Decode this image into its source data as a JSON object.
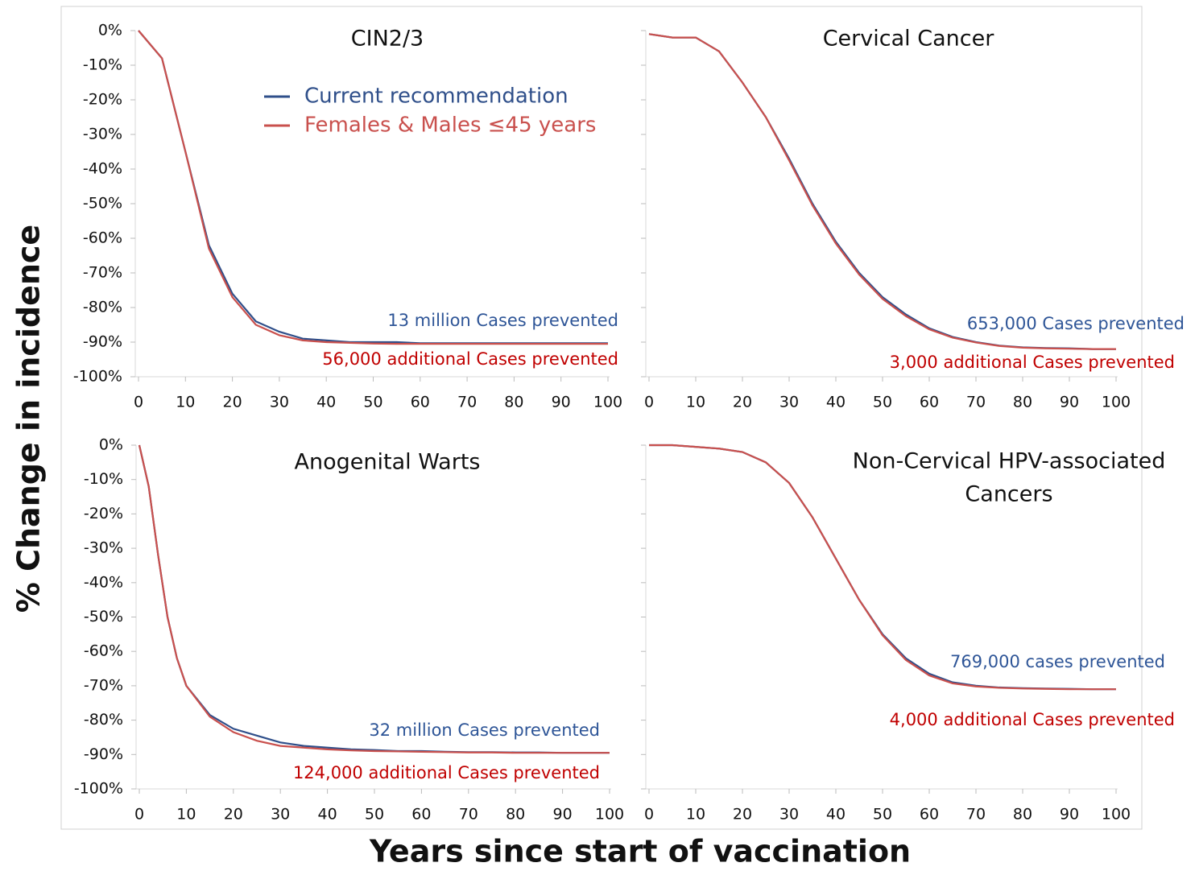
{
  "figure": {
    "xlabel": "Years since start of vaccination",
    "ylabel": "% Change in incidence"
  },
  "chart_data": [
    {
      "type": "line",
      "title": "CIN2/3",
      "legend": true,
      "x": [
        0,
        5,
        10,
        15,
        20,
        25,
        30,
        35,
        40,
        45,
        50,
        55,
        60,
        65,
        70,
        75,
        80,
        85,
        90,
        95,
        100
      ],
      "series": [
        {
          "name": "Current recommendation",
          "color": "#2f4f8a",
          "values": [
            0,
            -8,
            -35,
            -62,
            -76,
            -84,
            -87,
            -89,
            -89.5,
            -90,
            -90,
            -90,
            -90.3,
            -90.3,
            -90.3,
            -90.3,
            -90.3,
            -90.3,
            -90.3,
            -90.3,
            -90.3
          ]
        },
        {
          "name": "Females & Males ≤45 years",
          "color": "#c9504d",
          "values": [
            0,
            -8,
            -35,
            -63,
            -77,
            -85,
            -88,
            -89.5,
            -90,
            -90.2,
            -90.4,
            -90.5,
            -90.5,
            -90.5,
            -90.5,
            -90.5,
            -90.5,
            -90.5,
            -90.5,
            -90.5,
            -90.5
          ]
        }
      ],
      "annotations": [
        {
          "text": "13 million Cases prevented",
          "color": "#2e5597"
        },
        {
          "text": "56,000 additional Cases prevented",
          "color": "#c00000"
        }
      ],
      "xlim": [
        0,
        100
      ],
      "xticks": [
        0,
        10,
        20,
        30,
        40,
        50,
        60,
        70,
        80,
        90,
        100
      ],
      "ylim": [
        -100,
        0
      ],
      "show_ytick_labels": true,
      "yticks": [
        {
          "value": -100,
          "label": "-100%"
        },
        {
          "value": -90,
          "label": "-90%"
        },
        {
          "value": -80,
          "label": "-80%"
        },
        {
          "value": -70,
          "label": "-70%"
        },
        {
          "value": -60,
          "label": "-60%"
        },
        {
          "value": -50,
          "label": "-50%"
        },
        {
          "value": -40,
          "label": "-40%"
        },
        {
          "value": -30,
          "label": "-30%"
        },
        {
          "value": -20,
          "label": "-20%"
        },
        {
          "value": -10,
          "label": "-10%"
        },
        {
          "value": 0,
          "label": "0%"
        }
      ]
    },
    {
      "type": "line",
      "title": "Cervical Cancer",
      "legend": false,
      "x": [
        0,
        5,
        10,
        15,
        20,
        25,
        30,
        35,
        40,
        45,
        50,
        55,
        60,
        65,
        70,
        75,
        80,
        85,
        90,
        95,
        100
      ],
      "series": [
        {
          "color": "#2f4f8a",
          "values": [
            -1,
            -2,
            -2,
            -6,
            -15,
            -25,
            -37,
            -50,
            -61,
            -70,
            -77,
            -82,
            -86,
            -88.5,
            -90,
            -91,
            -91.5,
            -91.7,
            -91.8,
            -92,
            -92
          ]
        },
        {
          "color": "#c9504d",
          "values": [
            -1,
            -2,
            -2,
            -6,
            -15,
            -25,
            -37.5,
            -50.5,
            -61.5,
            -70.5,
            -77.5,
            -82.5,
            -86.3,
            -88.7,
            -90.1,
            -91.1,
            -91.6,
            -91.8,
            -91.9,
            -92,
            -92
          ]
        }
      ],
      "annotations": [
        {
          "text": "653,000 Cases prevented",
          "color": "#2e5597"
        },
        {
          "text": "3,000 additional Cases prevented",
          "color": "#c00000"
        }
      ],
      "xlim": [
        0,
        100
      ],
      "xticks": [
        0,
        10,
        20,
        30,
        40,
        50,
        60,
        70,
        80,
        90,
        100
      ],
      "ylim": [
        -100,
        0
      ],
      "show_ytick_labels": false,
      "yticks": [
        -100,
        -90,
        -80,
        -70,
        -60,
        -50,
        -40,
        -30,
        -20,
        -10,
        0
      ]
    },
    {
      "type": "line",
      "title": "Anogenital Warts",
      "legend": false,
      "x": [
        0,
        2,
        4,
        6,
        8,
        10,
        15,
        20,
        25,
        30,
        35,
        40,
        45,
        50,
        55,
        60,
        65,
        70,
        75,
        80,
        85,
        90,
        95,
        100
      ],
      "series": [
        {
          "color": "#2f4f8a",
          "values": [
            0,
            -12,
            -32,
            -50,
            -62,
            -70,
            -78.5,
            -82.5,
            -84.5,
            -86.5,
            -87.5,
            -88,
            -88.5,
            -88.7,
            -89,
            -89,
            -89.2,
            -89.3,
            -89.3,
            -89.4,
            -89.4,
            -89.5,
            -89.5,
            -89.5
          ]
        },
        {
          "color": "#c9504d",
          "values": [
            0,
            -12,
            -32,
            -50,
            -62,
            -70,
            -79,
            -83.5,
            -86,
            -87.5,
            -88,
            -88.5,
            -88.8,
            -89,
            -89.1,
            -89.2,
            -89.3,
            -89.4,
            -89.4,
            -89.5,
            -89.5,
            -89.5,
            -89.5,
            -89.5
          ]
        }
      ],
      "annotations": [
        {
          "text": "32 million Cases prevented",
          "color": "#2e5597"
        },
        {
          "text": "124,000 additional Cases prevented",
          "color": "#c00000"
        }
      ],
      "xlim": [
        0,
        100
      ],
      "xticks": [
        0,
        10,
        20,
        30,
        40,
        50,
        60,
        70,
        80,
        90,
        100
      ],
      "ylim": [
        -100,
        0
      ],
      "show_ytick_labels": true,
      "yticks": [
        {
          "value": -100,
          "label": "-100%"
        },
        {
          "value": -90,
          "label": "-90%"
        },
        {
          "value": -80,
          "label": "-80%"
        },
        {
          "value": -70,
          "label": "-70%"
        },
        {
          "value": -60,
          "label": "-60%"
        },
        {
          "value": -50,
          "label": "-50%"
        },
        {
          "value": -40,
          "label": "-40%"
        },
        {
          "value": -30,
          "label": "-30%"
        },
        {
          "value": -20,
          "label": "-20%"
        },
        {
          "value": -10,
          "label": "-10%"
        },
        {
          "value": 0,
          "label": "0%"
        }
      ]
    },
    {
      "type": "line",
      "title": [
        "Non-Cervical HPV-associated",
        "Cancers"
      ],
      "legend": false,
      "x": [
        0,
        5,
        10,
        15,
        20,
        25,
        30,
        35,
        40,
        45,
        50,
        55,
        60,
        65,
        70,
        75,
        80,
        85,
        90,
        95,
        100
      ],
      "series": [
        {
          "color": "#2f4f8a",
          "values": [
            0,
            0,
            -0.5,
            -1,
            -2,
            -5,
            -11,
            -21,
            -33,
            -45,
            -55,
            -62,
            -66.5,
            -69,
            -70,
            -70.5,
            -70.7,
            -70.8,
            -70.9,
            -71,
            -71
          ]
        },
        {
          "color": "#c9504d",
          "values": [
            0,
            0,
            -0.5,
            -1,
            -2,
            -5,
            -11,
            -21,
            -33,
            -45,
            -55.3,
            -62.5,
            -67,
            -69.3,
            -70.2,
            -70.6,
            -70.8,
            -70.9,
            -71,
            -71,
            -71
          ]
        }
      ],
      "annotations": [
        {
          "text": "769,000 cases prevented",
          "color": "#2e5597"
        },
        {
          "text": "4,000 additional Cases prevented",
          "color": "#c00000"
        }
      ],
      "xlim": [
        0,
        100
      ],
      "xticks": [
        0,
        10,
        20,
        30,
        40,
        50,
        60,
        70,
        80,
        90,
        100
      ],
      "ylim": [
        -100,
        0
      ],
      "show_ytick_labels": false,
      "yticks": [
        -100,
        -90,
        -80,
        -70,
        -60,
        -50,
        -40,
        -30,
        -20,
        -10,
        0
      ]
    }
  ]
}
